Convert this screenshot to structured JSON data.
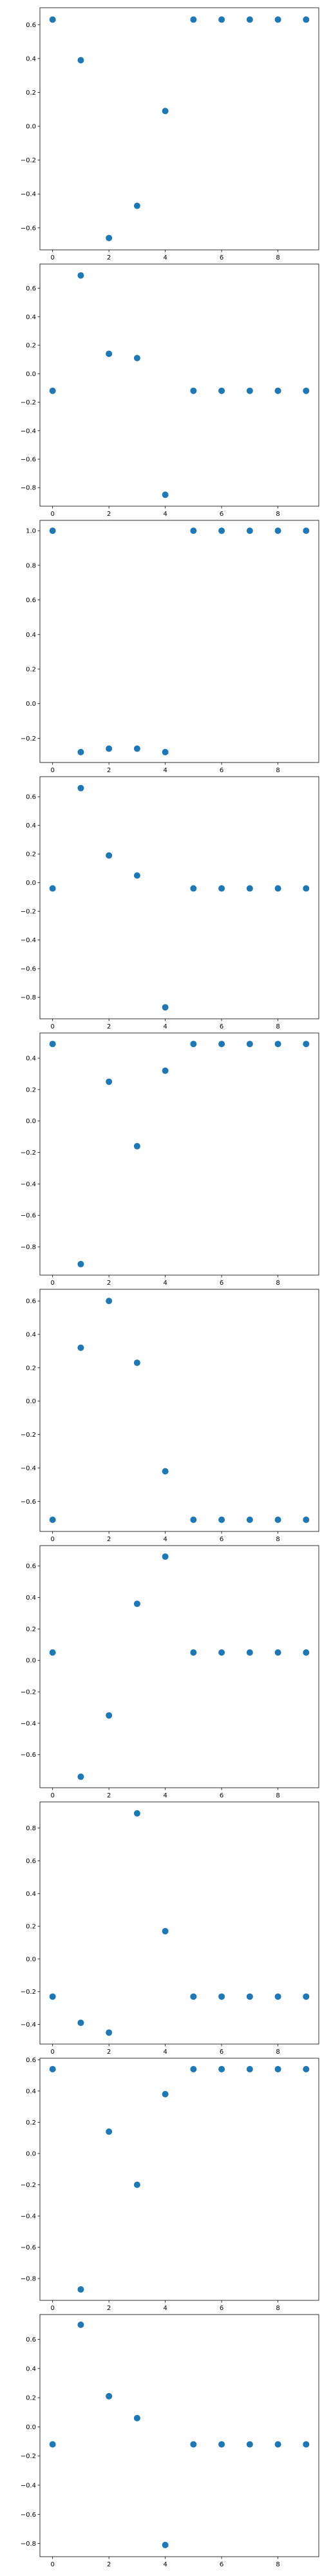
{
  "figure": {
    "background": "#ffffff",
    "marker_color": "#1f77b4"
  },
  "chart_data": [
    {
      "type": "scatter",
      "title": "",
      "xlabel": "",
      "ylabel": "",
      "x": [
        0,
        1,
        2,
        3,
        4,
        5,
        6,
        7,
        8,
        9
      ],
      "y": [
        0.63,
        0.39,
        -0.66,
        -0.47,
        0.09,
        0.63,
        0.63,
        0.63,
        0.63,
        0.63
      ],
      "xlim": [
        -0.45,
        9.45
      ],
      "ylim": [
        -0.73,
        0.7
      ],
      "xticks": [
        0,
        2,
        4,
        6,
        8
      ],
      "xtick_labels": [
        "0",
        "2",
        "4",
        "6",
        "8"
      ],
      "yticks": [
        -0.6,
        -0.4,
        -0.2,
        0.0,
        0.2,
        0.4,
        0.6
      ],
      "ytick_labels": [
        "−0.6",
        "−0.4",
        "−0.2",
        "0.0",
        "0.2",
        "0.4",
        "0.6"
      ],
      "grid": false
    },
    {
      "type": "scatter",
      "title": "",
      "xlabel": "",
      "ylabel": "",
      "x": [
        0,
        1,
        2,
        3,
        4,
        5,
        6,
        7,
        8,
        9
      ],
      "y": [
        -0.12,
        0.69,
        0.14,
        0.11,
        -0.85,
        -0.12,
        -0.12,
        -0.12,
        -0.12,
        -0.12
      ],
      "xlim": [
        -0.45,
        9.45
      ],
      "ylim": [
        -0.93,
        0.77
      ],
      "xticks": [
        0,
        2,
        4,
        6,
        8
      ],
      "xtick_labels": [
        "0",
        "2",
        "4",
        "6",
        "8"
      ],
      "yticks": [
        -0.8,
        -0.6,
        -0.4,
        -0.2,
        0.0,
        0.2,
        0.4,
        0.6
      ],
      "ytick_labels": [
        "−0.8",
        "−0.6",
        "−0.4",
        "−0.2",
        "0.0",
        "0.2",
        "0.4",
        "0.6"
      ],
      "grid": false
    },
    {
      "type": "scatter",
      "title": "",
      "xlabel": "",
      "ylabel": "",
      "x": [
        0,
        1,
        2,
        3,
        4,
        5,
        6,
        7,
        8,
        9
      ],
      "y": [
        1.0,
        -0.28,
        -0.26,
        -0.26,
        -0.28,
        1.0,
        1.0,
        1.0,
        1.0,
        1.0
      ],
      "xlim": [
        -0.45,
        9.45
      ],
      "ylim": [
        -0.34,
        1.06
      ],
      "xticks": [
        0,
        2,
        4,
        6,
        8
      ],
      "xtick_labels": [
        "0",
        "2",
        "4",
        "6",
        "8"
      ],
      "yticks": [
        -0.2,
        0.0,
        0.2,
        0.4,
        0.6,
        0.8,
        1.0
      ],
      "ytick_labels": [
        "−0.2",
        "0.0",
        "0.2",
        "0.4",
        "0.6",
        "0.8",
        "1.0"
      ],
      "grid": false
    },
    {
      "type": "scatter",
      "title": "",
      "xlabel": "",
      "ylabel": "",
      "x": [
        0,
        1,
        2,
        3,
        4,
        5,
        6,
        7,
        8,
        9
      ],
      "y": [
        -0.04,
        0.66,
        0.19,
        0.05,
        -0.87,
        -0.04,
        -0.04,
        -0.04,
        -0.04,
        -0.04
      ],
      "xlim": [
        -0.45,
        9.45
      ],
      "ylim": [
        -0.95,
        0.74
      ],
      "xticks": [
        0,
        2,
        4,
        6,
        8
      ],
      "xtick_labels": [
        "0",
        "2",
        "4",
        "6",
        "8"
      ],
      "yticks": [
        -0.8,
        -0.6,
        -0.4,
        -0.2,
        0.0,
        0.2,
        0.4,
        0.6
      ],
      "ytick_labels": [
        "−0.8",
        "−0.6",
        "−0.4",
        "−0.2",
        "0.0",
        "0.2",
        "0.4",
        "0.6"
      ],
      "grid": false
    },
    {
      "type": "scatter",
      "title": "",
      "xlabel": "",
      "ylabel": "",
      "x": [
        0,
        1,
        2,
        3,
        4,
        5,
        6,
        7,
        8,
        9
      ],
      "y": [
        0.49,
        -0.91,
        0.25,
        -0.16,
        0.32,
        0.49,
        0.49,
        0.49,
        0.49,
        0.49
      ],
      "xlim": [
        -0.45,
        9.45
      ],
      "ylim": [
        -0.98,
        0.56
      ],
      "xticks": [
        0,
        2,
        4,
        6,
        8
      ],
      "xtick_labels": [
        "0",
        "2",
        "4",
        "6",
        "8"
      ],
      "yticks": [
        -0.8,
        -0.6,
        -0.4,
        -0.2,
        0.0,
        0.2,
        0.4
      ],
      "ytick_labels": [
        "−0.8",
        "−0.6",
        "−0.4",
        "−0.2",
        "0.0",
        "0.2",
        "0.4"
      ],
      "grid": false
    },
    {
      "type": "scatter",
      "title": "",
      "xlabel": "",
      "ylabel": "",
      "x": [
        0,
        1,
        2,
        3,
        4,
        5,
        6,
        7,
        8,
        9
      ],
      "y": [
        -0.71,
        0.32,
        0.6,
        0.23,
        -0.42,
        -0.71,
        -0.71,
        -0.71,
        -0.71,
        -0.71
      ],
      "xlim": [
        -0.45,
        9.45
      ],
      "ylim": [
        -0.78,
        0.67
      ],
      "xticks": [
        0,
        2,
        4,
        6,
        8
      ],
      "xtick_labels": [
        "0",
        "2",
        "4",
        "6",
        "8"
      ],
      "yticks": [
        -0.6,
        -0.4,
        -0.2,
        0.0,
        0.2,
        0.4,
        0.6
      ],
      "ytick_labels": [
        "−0.6",
        "−0.4",
        "−0.2",
        "0.0",
        "0.2",
        "0.4",
        "0.6"
      ],
      "grid": false
    },
    {
      "type": "scatter",
      "title": "",
      "xlabel": "",
      "ylabel": "",
      "x": [
        0,
        1,
        2,
        3,
        4,
        5,
        6,
        7,
        8,
        9
      ],
      "y": [
        0.05,
        -0.74,
        -0.35,
        0.36,
        0.66,
        0.05,
        0.05,
        0.05,
        0.05,
        0.05
      ],
      "xlim": [
        -0.45,
        9.45
      ],
      "ylim": [
        -0.81,
        0.73
      ],
      "xticks": [
        0,
        2,
        4,
        6,
        8
      ],
      "xtick_labels": [
        "0",
        "2",
        "4",
        "6",
        "8"
      ],
      "yticks": [
        -0.6,
        -0.4,
        -0.2,
        0.0,
        0.2,
        0.4,
        0.6
      ],
      "ytick_labels": [
        "−0.6",
        "−0.4",
        "−0.2",
        "0.0",
        "0.2",
        "0.4",
        "0.6"
      ],
      "grid": false
    },
    {
      "type": "scatter",
      "title": "",
      "xlabel": "",
      "ylabel": "",
      "x": [
        0,
        1,
        2,
        3,
        4,
        5,
        6,
        7,
        8,
        9
      ],
      "y": [
        -0.23,
        -0.39,
        -0.45,
        0.89,
        0.17,
        -0.23,
        -0.23,
        -0.23,
        -0.23,
        -0.23
      ],
      "xlim": [
        -0.45,
        9.45
      ],
      "ylim": [
        -0.52,
        0.96
      ],
      "xticks": [
        0,
        2,
        4,
        6,
        8
      ],
      "xtick_labels": [
        "0",
        "2",
        "4",
        "6",
        "8"
      ],
      "yticks": [
        -0.4,
        -0.2,
        0.0,
        0.2,
        0.4,
        0.6,
        0.8
      ],
      "ytick_labels": [
        "−0.4",
        "−0.2",
        "0.0",
        "0.2",
        "0.4",
        "0.6",
        "0.8"
      ],
      "grid": false
    },
    {
      "type": "scatter",
      "title": "",
      "xlabel": "",
      "ylabel": "",
      "x": [
        0,
        1,
        2,
        3,
        4,
        5,
        6,
        7,
        8,
        9
      ],
      "y": [
        0.54,
        -0.87,
        0.14,
        -0.2,
        0.38,
        0.54,
        0.54,
        0.54,
        0.54,
        0.54
      ],
      "xlim": [
        -0.45,
        9.45
      ],
      "ylim": [
        -0.94,
        0.61
      ],
      "xticks": [
        0,
        2,
        4,
        6,
        8
      ],
      "xtick_labels": [
        "0",
        "2",
        "4",
        "6",
        "8"
      ],
      "yticks": [
        -0.8,
        -0.6,
        -0.4,
        -0.2,
        0.0,
        0.2,
        0.4,
        0.6
      ],
      "ytick_labels": [
        "−0.8",
        "−0.6",
        "−0.4",
        "−0.2",
        "0.0",
        "0.2",
        "0.4",
        "0.6"
      ],
      "grid": false
    },
    {
      "type": "scatter",
      "title": "",
      "xlabel": "",
      "ylabel": "",
      "x": [
        0,
        1,
        2,
        3,
        4,
        5,
        6,
        7,
        8,
        9
      ],
      "y": [
        -0.12,
        0.7,
        0.21,
        0.06,
        -0.81,
        -0.12,
        -0.12,
        -0.12,
        -0.12,
        -0.12
      ],
      "xlim": [
        -0.45,
        9.45
      ],
      "ylim": [
        -0.89,
        0.77
      ],
      "xticks": [
        0,
        2,
        4,
        6,
        8
      ],
      "xtick_labels": [
        "0",
        "2",
        "4",
        "6",
        "8"
      ],
      "yticks": [
        -0.8,
        -0.6,
        -0.4,
        -0.2,
        0.0,
        0.2,
        0.4,
        0.6
      ],
      "ytick_labels": [
        "−0.8",
        "−0.6",
        "−0.4",
        "−0.2",
        "0.0",
        "0.2",
        "0.4",
        "0.6"
      ],
      "grid": false
    }
  ]
}
